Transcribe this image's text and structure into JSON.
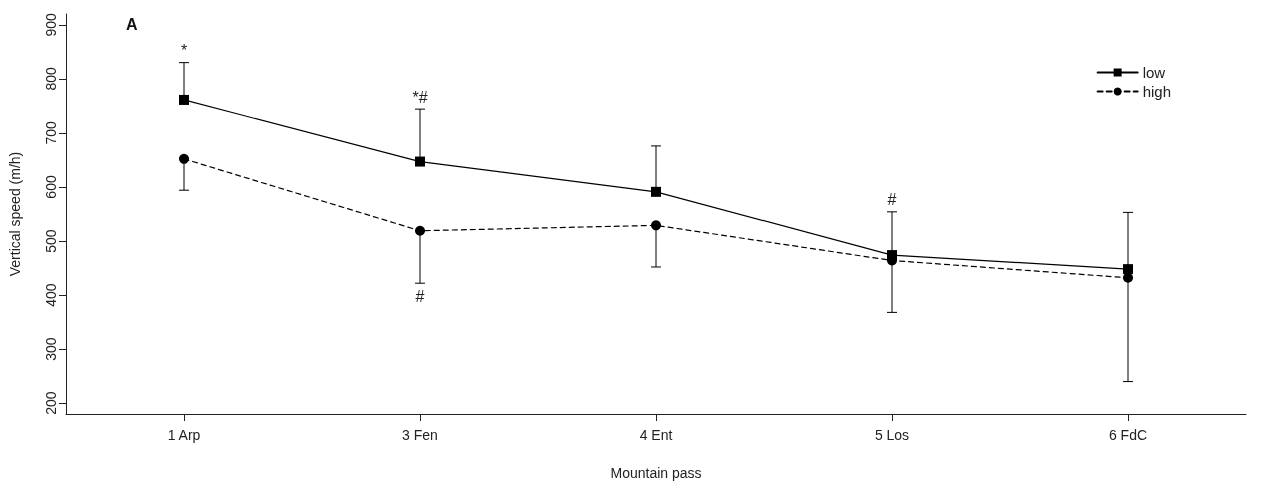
{
  "chart_data": {
    "type": "line",
    "xlabel": "Mountain pass",
    "ylabel": "Vertical speed (m/h)",
    "categories": [
      "1 Arp",
      "3 Fen",
      "4 Ent",
      "5 Los",
      "6 FdC"
    ],
    "series": [
      {
        "name": "low",
        "color": "#000000",
        "marker": "square",
        "line_style": "solid",
        "values": [
          761,
          647,
          591,
          474,
          448
        ],
        "errors": [
          [
            761,
            830
          ],
          [
            647,
            744
          ],
          [
            591,
            676
          ],
          [
            474,
            554
          ],
          [
            448,
            553
          ]
        ]
      },
      {
        "name": "high",
        "color": "#000000",
        "marker": "circle",
        "line_style": "dashed",
        "values": [
          652,
          519,
          529,
          464,
          432
        ],
        "errors": [
          [
            594,
            652
          ],
          [
            422,
            519
          ],
          [
            452,
            529
          ],
          [
            368,
            464
          ],
          [
            240,
            432
          ]
        ]
      }
    ],
    "ylim": [
      180,
      920
    ],
    "yticks": [
      200,
      300,
      400,
      500,
      600,
      700,
      800,
      900
    ],
    "grid": false,
    "legend": "top right",
    "annotations": [
      "A",
      {
        "text": "*",
        "x": "1 Arp",
        "y": 830
      },
      {
        "text": "*#",
        "x": "3 Fen",
        "y": 744
      },
      {
        "text": "#",
        "x": "3 Fen",
        "y": 422
      },
      {
        "text": "#",
        "x": "5 Los",
        "y": 554
      }
    ]
  }
}
